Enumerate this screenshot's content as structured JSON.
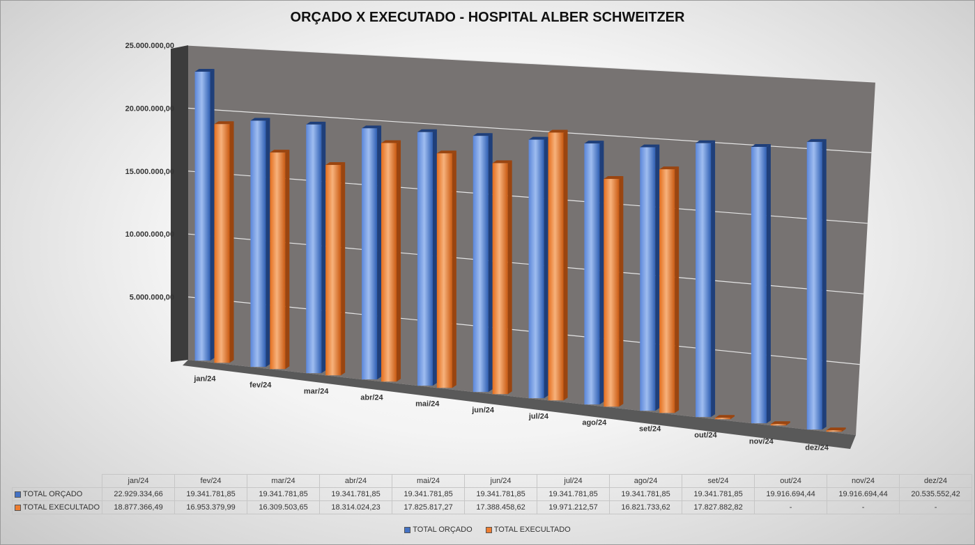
{
  "chart_data": {
    "type": "bar",
    "title": "ORÇADO X EXECUTADO - HOSPITAL ALBER SCHWEITZER",
    "categories": [
      "jan/24",
      "fev/24",
      "mar/24",
      "abr/24",
      "mai/24",
      "jun/24",
      "jul/24",
      "ago/24",
      "set/24",
      "out/24",
      "nov/24",
      "dez/24"
    ],
    "series": [
      {
        "name": "TOTAL ORÇADO",
        "color": "#4472c4",
        "values": [
          22929334.66,
          19341781.85,
          19341781.85,
          19341781.85,
          19341781.85,
          19341781.85,
          19341781.85,
          19341781.85,
          19341781.85,
          19916694.44,
          19916694.44,
          20535552.42
        ],
        "labels": [
          "22.929.334,66",
          "19.341.781,85",
          "19.341.781,85",
          "19.341.781,85",
          "19.341.781,85",
          "19.341.781,85",
          "19.341.781,85",
          "19.341.781,85",
          "19.341.781,85",
          "19.916.694,44",
          "19.916.694,44",
          "20.535.552,42"
        ]
      },
      {
        "name": "TOTAL EXECULTADO",
        "color": "#ed7d31",
        "values": [
          18877366.49,
          16953379.99,
          16309503.65,
          18314024.23,
          17825817.27,
          17388458.62,
          19971212.57,
          16821733.62,
          17827882.82,
          0,
          0,
          0
        ],
        "labels": [
          "18.877.366,49",
          "16.953.379,99",
          "16.309.503,65",
          "18.314.024,23",
          "17.825.817,27",
          "17.388.458,62",
          "19.971.212,57",
          "16.821.733,62",
          "17.827.882,82",
          "-",
          "-",
          "-"
        ]
      }
    ],
    "y_ticks": [
      "-",
      "5.000.000,00",
      "10.000.000,00",
      "15.000.000,00",
      "20.000.000,00",
      "25.000.000,00"
    ],
    "ylim": [
      0,
      25000000
    ],
    "legend": "bottom",
    "grid": true,
    "data_table": true
  }
}
